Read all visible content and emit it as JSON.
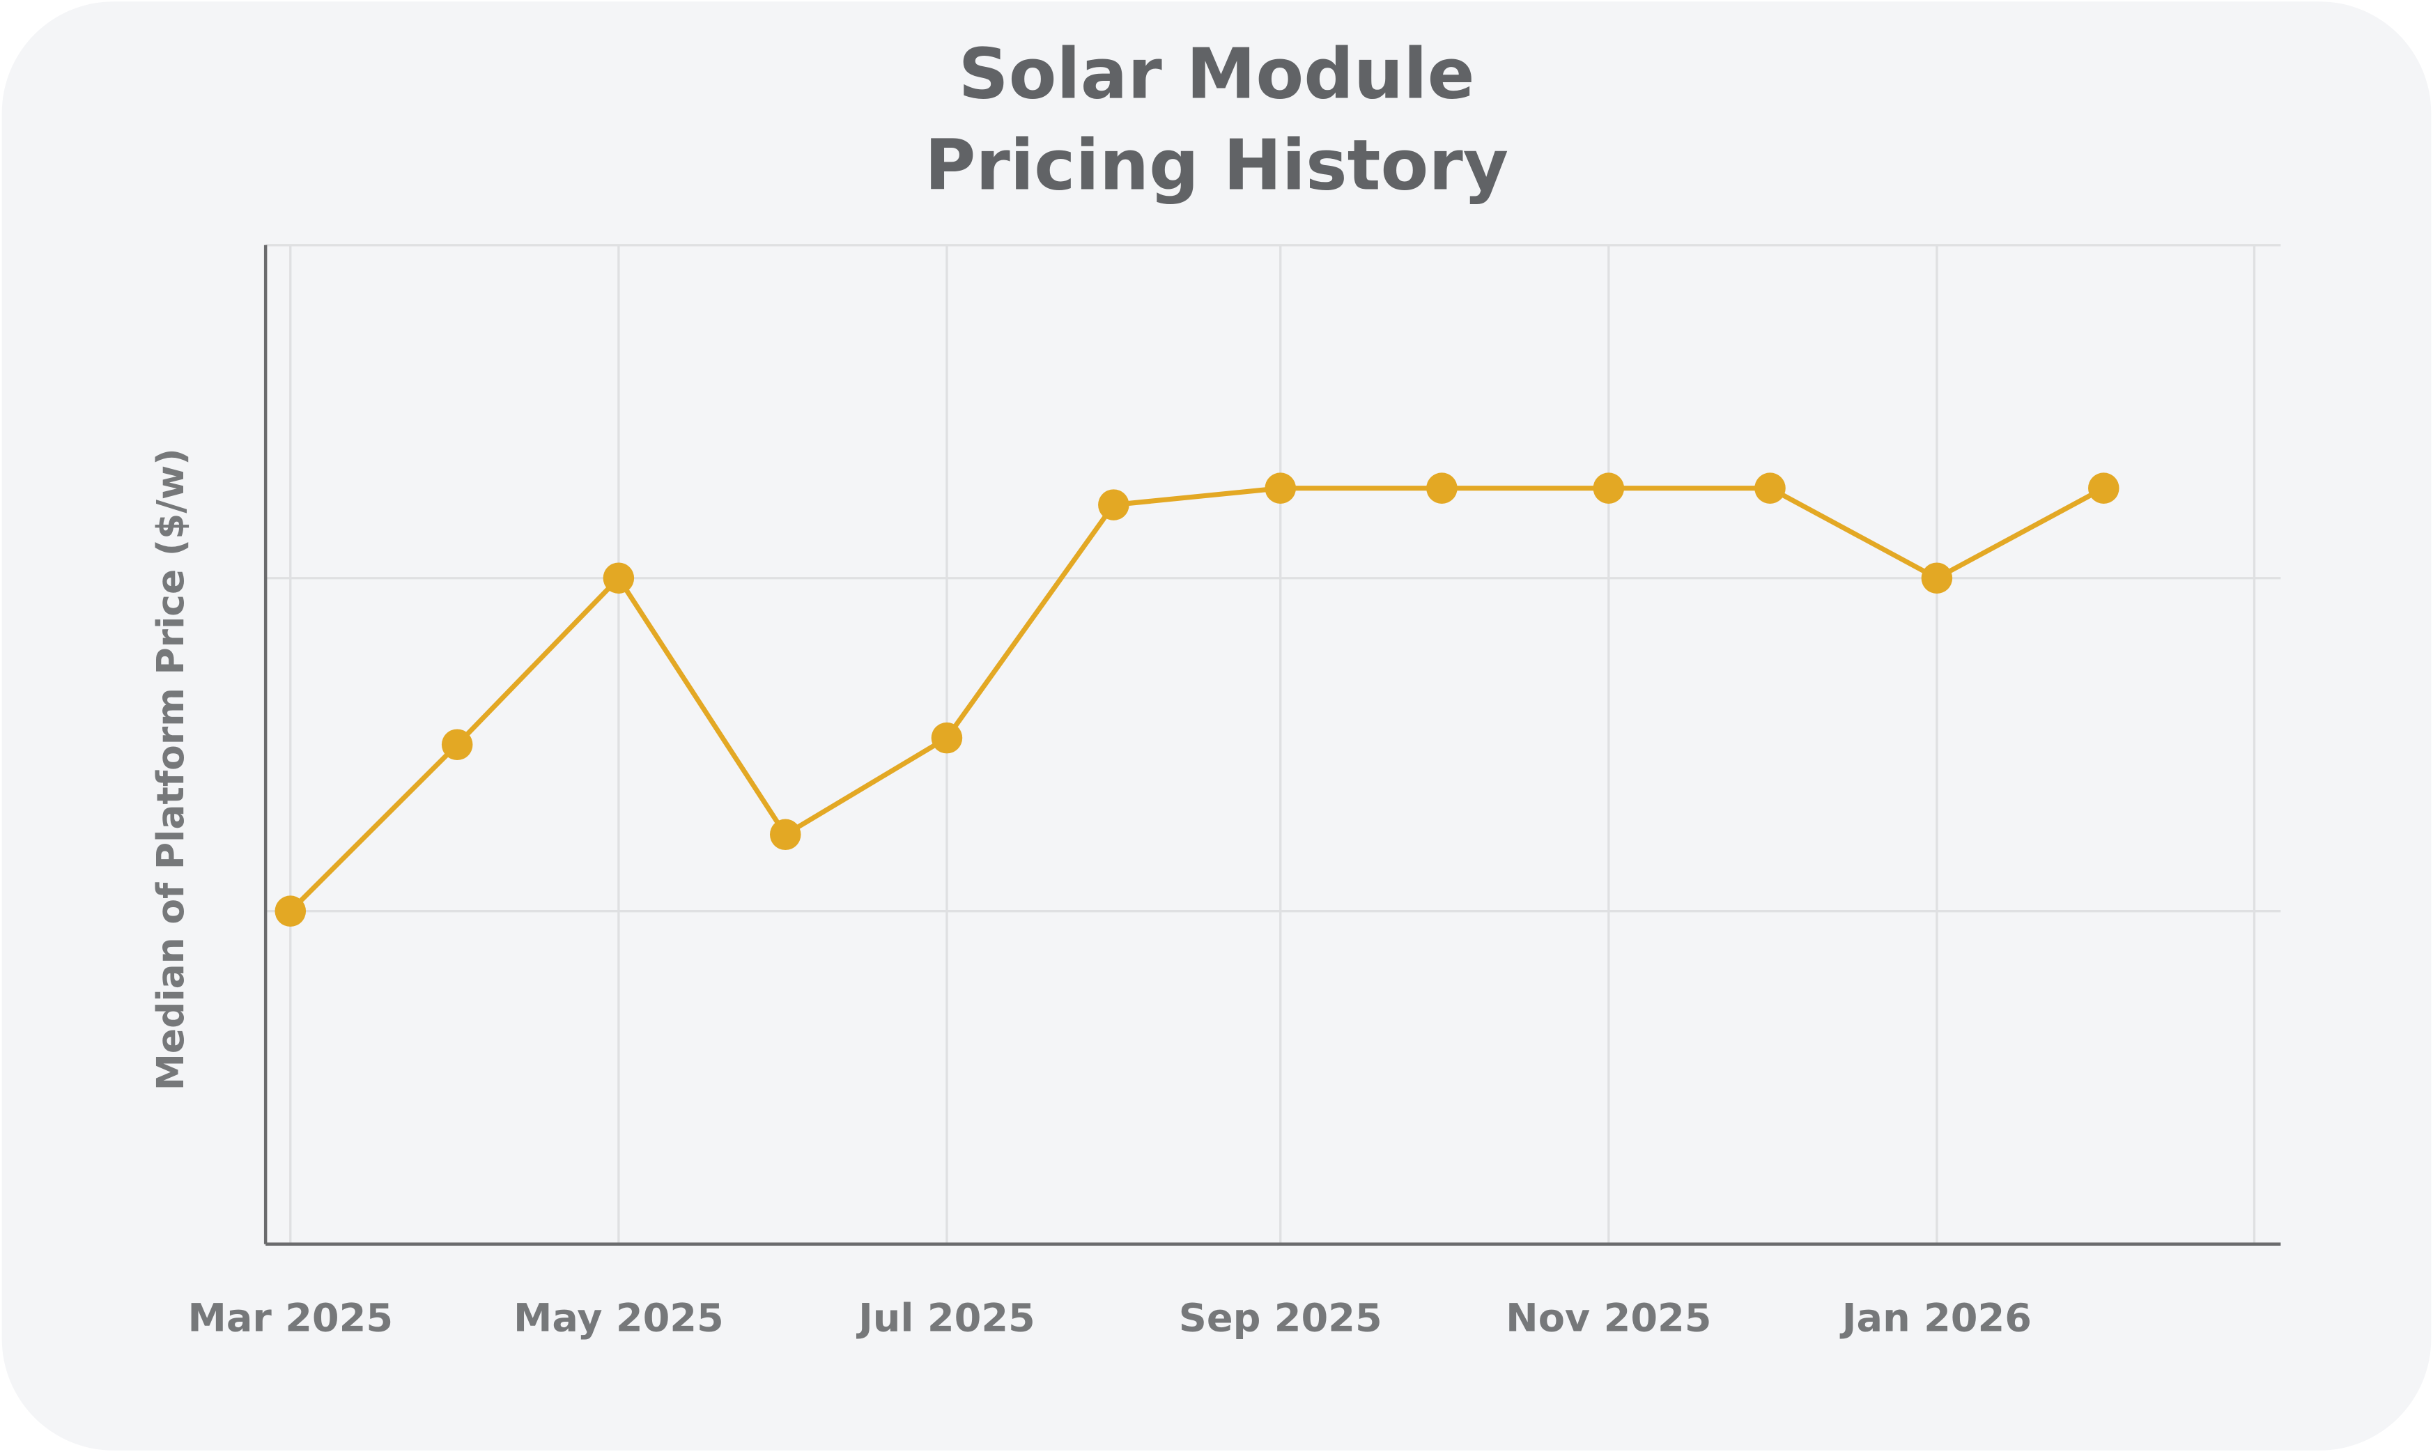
{
  "chart_data": {
    "type": "line",
    "title_lines": [
      "Solar Module",
      "Pricing History"
    ],
    "xlabel": "",
    "ylabel": "Median of Platform Price ($/w)",
    "x_tick_labels": [
      {
        "date": "2025-03-01",
        "label": "Mar 2025"
      },
      {
        "date": "2025-05-01",
        "label": "May 2025"
      },
      {
        "date": "2025-07-01",
        "label": "Jul 2025"
      },
      {
        "date": "2025-09-01",
        "label": "Sep 2025"
      },
      {
        "date": "2025-11-01",
        "label": "Nov 2025"
      },
      {
        "date": "2026-01-01",
        "label": "Jan 2026"
      }
    ],
    "xlim": [
      "2025-02-24",
      "2026-03-10"
    ],
    "x_grid_extra": [
      "2026-03-01"
    ],
    "ylim": [
      0,
      3
    ],
    "y_gridlines": [
      1,
      2,
      3
    ],
    "y_tick_labels_visible": false,
    "grid": true,
    "series": [
      {
        "name": "Median of Platform Price ($/w)",
        "color": "#e3a824",
        "x": [
          "2025-03-01",
          "2025-04-01",
          "2025-05-01",
          "2025-06-01",
          "2025-07-01",
          "2025-08-01",
          "2025-09-01",
          "2025-10-01",
          "2025-11-01",
          "2025-12-01",
          "2026-01-01",
          "2026-02-01"
        ],
        "values": [
          1.0,
          1.5,
          2.0,
          1.23,
          1.52,
          2.22,
          2.27,
          2.27,
          2.27,
          2.27,
          2.0,
          2.27
        ]
      }
    ]
  }
}
